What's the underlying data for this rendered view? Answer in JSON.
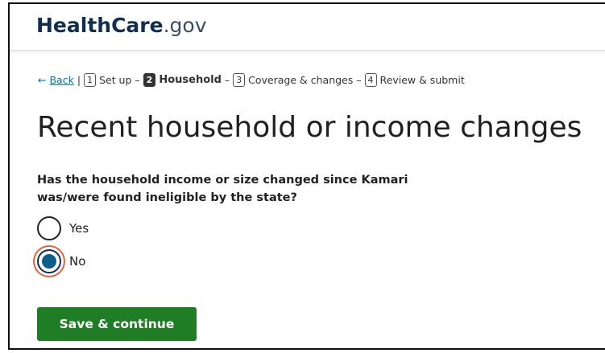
{
  "header": {
    "logo_name": "HealthCare",
    "logo_suffix": ".gov"
  },
  "breadcrumb": {
    "back_arrow": "←",
    "back": "Back",
    "divider": "|",
    "separator": "–",
    "steps": [
      {
        "number": "1",
        "label": "Set up"
      },
      {
        "number": "2",
        "label": "Household"
      },
      {
        "number": "3",
        "label": "Coverage & changes"
      },
      {
        "number": "4",
        "label": "Review & submit"
      }
    ]
  },
  "heading": "Recent household or income changes",
  "question": "Has the household income or size changed since Kamari was/were found ineligible by the state?",
  "options": [
    {
      "label": "Yes",
      "selected": false
    },
    {
      "label": "No",
      "selected": true
    }
  ],
  "button": "Save & continue"
}
